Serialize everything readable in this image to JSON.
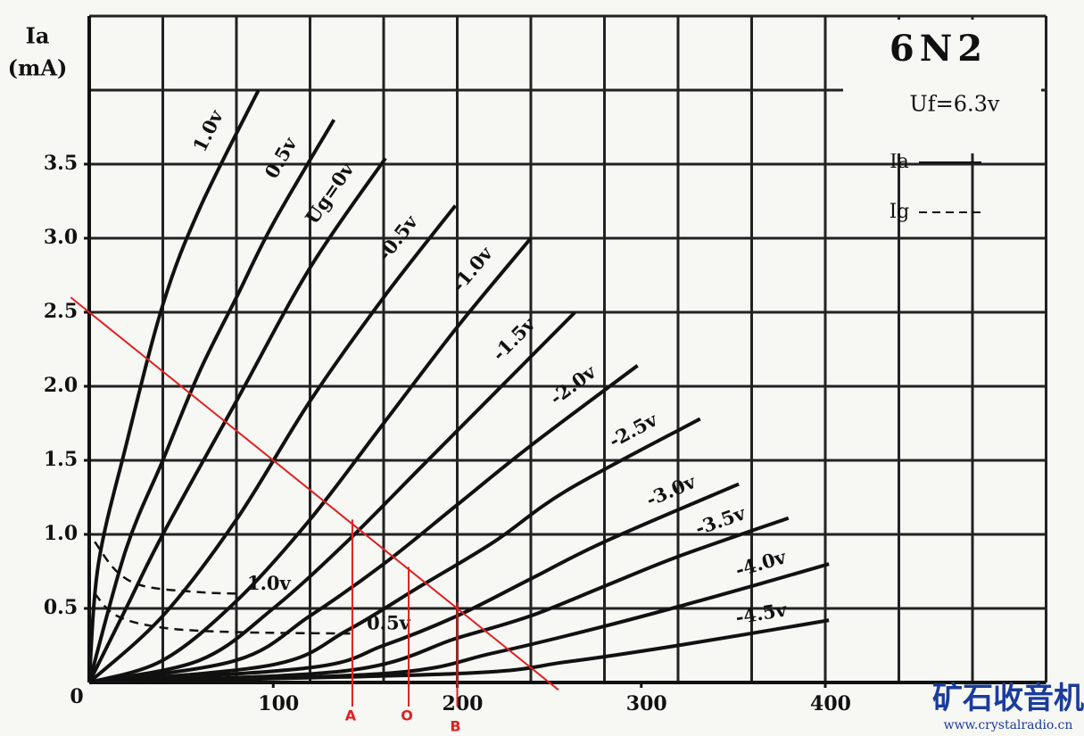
{
  "chart_data": {
    "type": "line",
    "title": "6N2",
    "subtitle": "Uf=6.3v",
    "y_label": "Ia",
    "y_unit": "(mA)",
    "origin_label": "0",
    "xlim": [
      0,
      520
    ],
    "ylim": [
      0,
      4.5
    ],
    "xticks": [
      100,
      200,
      300,
      400
    ],
    "yticks": [
      0.5,
      {
        "value": 1,
        "label": "1.0"
      },
      1.5,
      {
        "value": 2,
        "label": "2.0"
      },
      2.5,
      {
        "value": 3,
        "label": "3.0"
      },
      3.5
    ],
    "xgrid": [
      40,
      80,
      120,
      160,
      200,
      240,
      280,
      320,
      360,
      400,
      440,
      480,
      520
    ],
    "ygrid": [
      0.5,
      1,
      1.5,
      2,
      2.5,
      3,
      3.5,
      4,
      4.5
    ],
    "grid": true,
    "legend": [
      {
        "label": "Ia",
        "style": "solid"
      },
      {
        "label": "Ig",
        "style": "dashed"
      }
    ],
    "series": [
      {
        "name": "1.0v",
        "color": "#111111",
        "style": "solid",
        "x": [
          0,
          5,
          20,
          40,
          60,
          92
        ],
        "values": [
          0,
          0.8,
          1.6,
          2.55,
          3.2,
          4.0
        ]
      },
      {
        "name": "0.5v",
        "color": "#111111",
        "style": "solid",
        "x": [
          0,
          20,
          40,
          60,
          80,
          100,
          133
        ],
        "values": [
          0,
          0.9,
          1.5,
          2.1,
          2.6,
          3.1,
          3.8
        ]
      },
      {
        "name": "Ug=0v",
        "color": "#111111",
        "style": "solid",
        "x": [
          0,
          20,
          40,
          80,
          120,
          161
        ],
        "values": [
          0,
          0.5,
          1.0,
          1.9,
          2.8,
          3.54
        ]
      },
      {
        "name": "-0.5v",
        "color": "#111111",
        "style": "solid",
        "x": [
          0,
          40,
          80,
          120,
          160,
          199
        ],
        "values": [
          0,
          0.45,
          1.1,
          1.9,
          2.6,
          3.22
        ]
      },
      {
        "name": "-1.0v",
        "color": "#111111",
        "style": "solid",
        "x": [
          0,
          40,
          80,
          120,
          160,
          200,
          240
        ],
        "values": [
          0,
          0.15,
          0.55,
          1.1,
          1.75,
          2.4,
          3.0
        ]
      },
      {
        "name": "-1.5v",
        "color": "#111111",
        "style": "solid",
        "x": [
          0,
          60,
          100,
          140,
          180,
          220,
          264
        ],
        "values": [
          0,
          0.15,
          0.5,
          0.95,
          1.45,
          1.95,
          2.5
        ]
      },
      {
        "name": "-2.0v",
        "color": "#111111",
        "style": "solid",
        "x": [
          0,
          80,
          120,
          160,
          200,
          240,
          298
        ],
        "values": [
          0,
          0.15,
          0.45,
          0.8,
          1.2,
          1.6,
          2.14
        ]
      },
      {
        "name": "-2.5v",
        "color": "#111111",
        "style": "solid",
        "x": [
          0,
          100,
          140,
          180,
          220,
          260,
          332
        ],
        "values": [
          0,
          0.12,
          0.35,
          0.65,
          0.95,
          1.3,
          1.78
        ]
      },
      {
        "name": "-3.0v",
        "color": "#111111",
        "style": "solid",
        "x": [
          0,
          120,
          160,
          200,
          240,
          280,
          353
        ],
        "values": [
          0,
          0.1,
          0.25,
          0.45,
          0.7,
          0.95,
          1.34
        ]
      },
      {
        "name": "-3.5v",
        "color": "#111111",
        "style": "solid",
        "x": [
          0,
          140,
          200,
          240,
          280,
          320,
          380
        ],
        "values": [
          0,
          0.08,
          0.3,
          0.45,
          0.65,
          0.85,
          1.11
        ]
      },
      {
        "name": "-4.0v",
        "color": "#111111",
        "style": "solid",
        "x": [
          0,
          160,
          220,
          280,
          340,
          402
        ],
        "values": [
          0,
          0.06,
          0.2,
          0.38,
          0.58,
          0.8
        ]
      },
      {
        "name": "-4.5v",
        "color": "#111111",
        "style": "solid",
        "x": [
          0,
          200,
          260,
          320,
          402
        ],
        "values": [
          0,
          0.06,
          0.14,
          0.25,
          0.42
        ]
      },
      {
        "name": "1.0v",
        "color": "#111111",
        "style": "dashed",
        "x": [
          3,
          15,
          30,
          60,
          80
        ],
        "values": [
          0.95,
          0.75,
          0.65,
          0.61,
          0.6
        ]
      },
      {
        "name": "0.5v",
        "color": "#111111",
        "style": "dashed",
        "x": [
          3,
          15,
          40,
          80,
          145
        ],
        "values": [
          0.6,
          0.45,
          0.37,
          0.34,
          0.33
        ]
      }
    ],
    "load_line": {
      "color": "#e02020",
      "x": [
        -10,
        255
      ],
      "values": [
        2.6,
        -0.05
      ]
    },
    "markers": [
      {
        "label": "A",
        "x": 143,
        "y": 1.1
      },
      {
        "label": "O",
        "x": 173.6,
        "y": 0.78
      },
      {
        "label": "B",
        "x": 200,
        "y": 0.54
      }
    ],
    "watermark": "矿石收音机",
    "watermark_url": "www.crystalradio.cn"
  }
}
